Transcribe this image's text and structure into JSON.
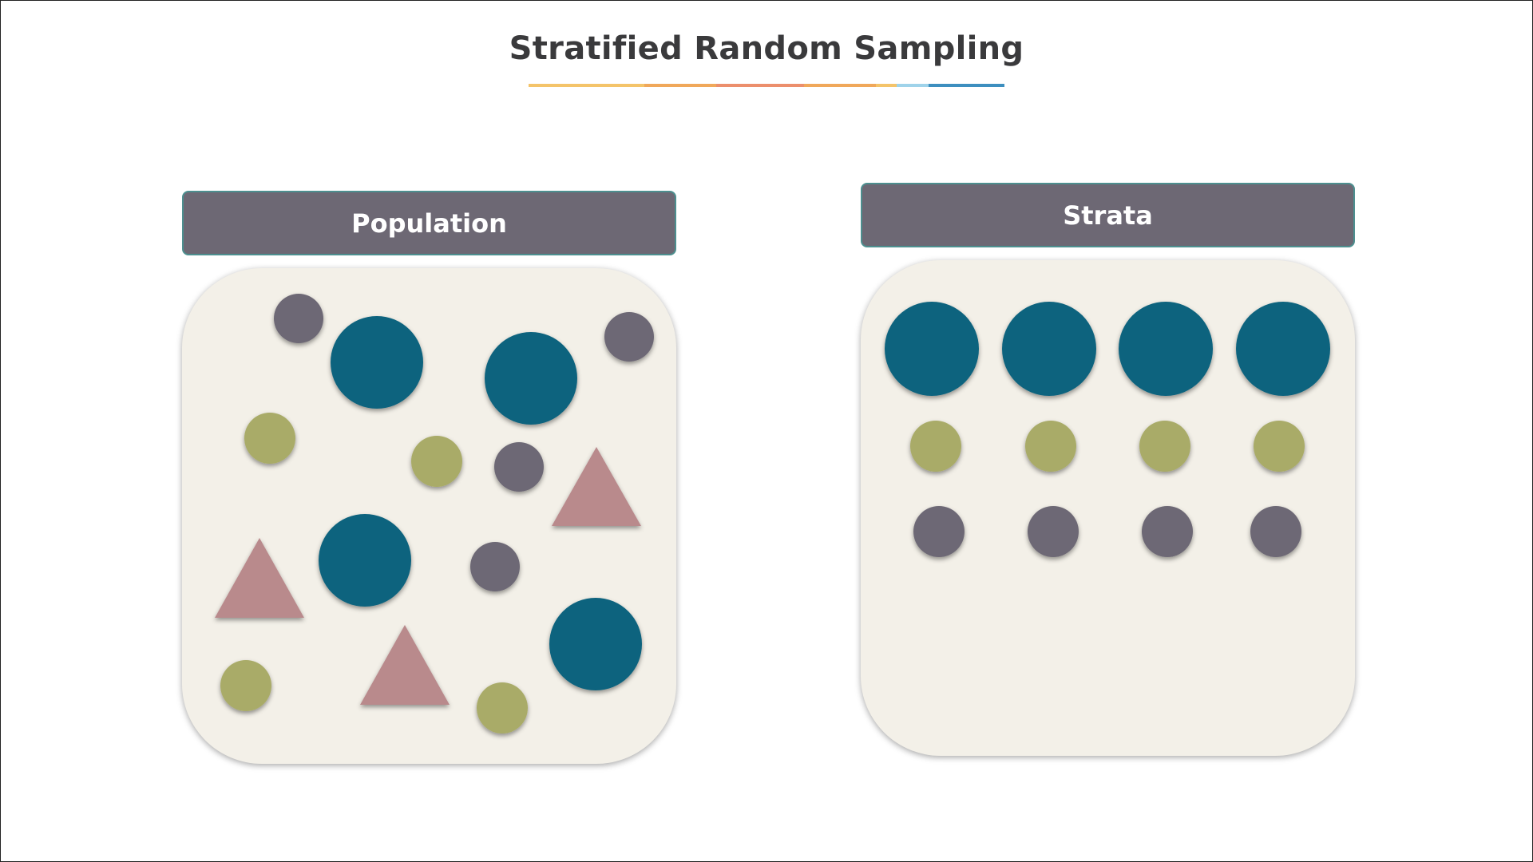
{
  "title": "Stratified Random Sampling",
  "title_underline_colors": [
    "#f4c46a",
    "#f0a85a",
    "#ec8f6c",
    "#f0a85a",
    "#f4c46a",
    "#9fd3ea",
    "#3d8fbf"
  ],
  "colors": {
    "teal": "#0e637e",
    "olive": "#a9ab68",
    "gray": "#6d6874",
    "pink": "#b98a8c",
    "panel": "#f3f0e8",
    "header": "#6d6874"
  },
  "panels": {
    "population": {
      "label": "Population"
    },
    "strata": {
      "label": "Strata"
    }
  }
}
